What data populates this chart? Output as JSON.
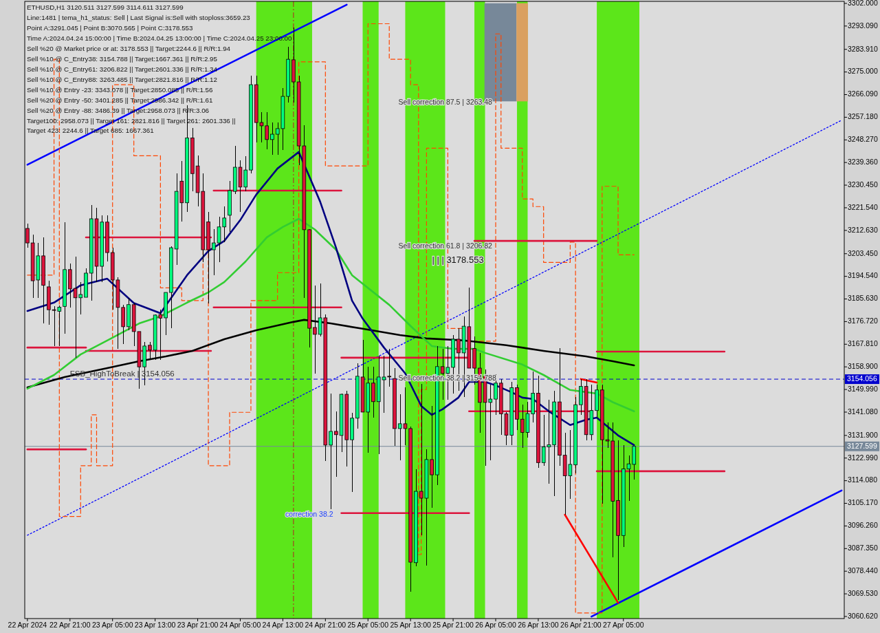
{
  "chart_data": {
    "type": "candlestick",
    "x": [
      "2024-04-22T13:00",
      "2024-04-22T14:00",
      "2024-04-22T15:00",
      "2024-04-22T16:00",
      "2024-04-22T17:00",
      "2024-04-22T18:00",
      "2024-04-22T19:00",
      "2024-04-22T20:00",
      "2024-04-22T21:00",
      "2024-04-22T22:00",
      "2024-04-22T23:00",
      "2024-04-23T00:00",
      "2024-04-23T01:00",
      "2024-04-23T02:00",
      "2024-04-23T03:00",
      "2024-04-23T04:00",
      "2024-04-23T05:00",
      "2024-04-23T06:00",
      "2024-04-23T07:00",
      "2024-04-23T08:00",
      "2024-04-23T09:00",
      "2024-04-23T10:00",
      "2024-04-23T11:00",
      "2024-04-23T12:00",
      "2024-04-23T13:00",
      "2024-04-23T14:00",
      "2024-04-23T15:00",
      "2024-04-23T16:00",
      "2024-04-23T17:00",
      "2024-04-23T18:00",
      "2024-04-23T19:00",
      "2024-04-23T20:00",
      "2024-04-23T21:00",
      "2024-04-23T22:00",
      "2024-04-23T23:00",
      "2024-04-24T00:00",
      "2024-04-24T01:00",
      "2024-04-24T02:00",
      "2024-04-24T03:00",
      "2024-04-24T04:00",
      "2024-04-24T05:00",
      "2024-04-24T06:00",
      "2024-04-24T07:00",
      "2024-04-24T08:00",
      "2024-04-24T09:00",
      "2024-04-24T10:00",
      "2024-04-24T11:00",
      "2024-04-24T12:00",
      "2024-04-24T13:00",
      "2024-04-24T14:00",
      "2024-04-24T15:00",
      "2024-04-24T16:00",
      "2024-04-24T17:00",
      "2024-04-24T18:00",
      "2024-04-24T19:00",
      "2024-04-24T20:00",
      "2024-04-24T21:00",
      "2024-04-24T22:00",
      "2024-04-24T23:00",
      "2024-04-25T00:00",
      "2024-04-25T01:00",
      "2024-04-25T02:00",
      "2024-04-25T03:00",
      "2024-04-25T04:00",
      "2024-04-25T05:00",
      "2024-04-25T06:00",
      "2024-04-25T07:00",
      "2024-04-25T08:00",
      "2024-04-25T09:00",
      "2024-04-25T10:00",
      "2024-04-25T11:00",
      "2024-04-25T12:00",
      "2024-04-25T13:00",
      "2024-04-25T14:00",
      "2024-04-25T15:00",
      "2024-04-25T16:00",
      "2024-04-25T17:00",
      "2024-04-25T18:00",
      "2024-04-25T19:00",
      "2024-04-25T20:00",
      "2024-04-25T21:00",
      "2024-04-25T22:00",
      "2024-04-25T23:00",
      "2024-04-26T00:00",
      "2024-04-26T01:00",
      "2024-04-26T02:00",
      "2024-04-26T03:00",
      "2024-04-26T04:00",
      "2024-04-26T05:00",
      "2024-04-26T06:00",
      "2024-04-26T07:00",
      "2024-04-26T08:00",
      "2024-04-26T09:00",
      "2024-04-26T10:00",
      "2024-04-26T11:00",
      "2024-04-26T12:00",
      "2024-04-26T13:00",
      "2024-04-26T14:00",
      "2024-04-26T15:00",
      "2024-04-26T16:00",
      "2024-04-26T17:00",
      "2024-04-26T18:00",
      "2024-04-26T19:00",
      "2024-04-26T20:00",
      "2024-04-26T21:00",
      "2024-04-26T22:00",
      "2024-04-26T23:00",
      "2024-04-27T00:00",
      "2024-04-27T01:00",
      "2024-04-27T02:00",
      "2024-04-27T03:00",
      "2024-04-27T04:00",
      "2024-04-27T05:00",
      "2024-04-27T06:00",
      "2024-04-27T07:00"
    ],
    "ohlc": [
      [
        3213.4,
        3215.3,
        3205.8,
        3207.7
      ],
      [
        3207.7,
        3210.9,
        3186.1,
        3192.8
      ],
      [
        3193.1,
        3207.7,
        3186.1,
        3202.6
      ],
      [
        3202.6,
        3209.9,
        3176.0,
        3191.0
      ],
      [
        3190.4,
        3192.8,
        3175.5,
        3181.4
      ],
      [
        3181.4,
        3182.8,
        3167.1,
        3181.4
      ],
      [
        3180.8,
        3183.0,
        3167.1,
        3182.4
      ],
      [
        3182.7,
        3215.9,
        3172.0,
        3197.2
      ],
      [
        3197.2,
        3199.6,
        3182.3,
        3189.6
      ],
      [
        3189.8,
        3202.3,
        3162.5,
        3186.1
      ],
      [
        3186.1,
        3192.3,
        3179.5,
        3187.4
      ],
      [
        3186.3,
        3197.7,
        3186.3,
        3195.8
      ],
      [
        3195.8,
        3222.6,
        3185.0,
        3217.2
      ],
      [
        3217.2,
        3221.5,
        3192.3,
        3198.5
      ],
      [
        3198.5,
        3218.6,
        3192.3,
        3215.9
      ],
      [
        3215.9,
        3218.6,
        3200.4,
        3203.9
      ],
      [
        3203.9,
        3205.8,
        3181.4,
        3193.1
      ],
      [
        3193.1,
        3194.2,
        3166.0,
        3182.3
      ],
      [
        3182.3,
        3183.4,
        3167.9,
        3174.7
      ],
      [
        3174.7,
        3186.1,
        3173.3,
        3183.4
      ],
      [
        3183.4,
        3184.2,
        3167.1,
        3172.8
      ],
      [
        3172.8,
        3172.8,
        3150.3,
        3158.9
      ],
      [
        3158.9,
        3168.7,
        3151.7,
        3167.1
      ],
      [
        3167.4,
        3168.7,
        3161.7,
        3165.5
      ],
      [
        3165.5,
        3179.5,
        3161.7,
        3179.3
      ],
      [
        3179.5,
        3181.4,
        3161.7,
        3178.1
      ],
      [
        3178.2,
        3188.2,
        3171.4,
        3188.2
      ],
      [
        3188.2,
        3206.4,
        3174.1,
        3205.8
      ],
      [
        3205.3,
        3235.0,
        3199.0,
        3228.0
      ],
      [
        3232.0,
        3240.0,
        3216.0,
        3223.5
      ],
      [
        3223.5,
        3262.0,
        3220.0,
        3249.0
      ],
      [
        3249.0,
        3253.0,
        3228.0,
        3235.0
      ],
      [
        3238.0,
        3242.0,
        3222.0,
        3227.5
      ],
      [
        3228.0,
        3235.0,
        3200.0,
        3205.0
      ],
      [
        3216.0,
        3220.0,
        3184.0,
        3205.0
      ],
      [
        3205.0,
        3213.0,
        3195.0,
        3207.7
      ],
      [
        3207.7,
        3218.0,
        3200.0,
        3214.0
      ],
      [
        3214.0,
        3222.0,
        3208.0,
        3217.5
      ],
      [
        3218.6,
        3232.0,
        3212.0,
        3228.3
      ],
      [
        3228.0,
        3246.0,
        3227.0,
        3237.5
      ],
      [
        3237.5,
        3240.2,
        3220.0,
        3229.7
      ],
      [
        3229.7,
        3241.9,
        3228.0,
        3236.4
      ],
      [
        3236.4,
        3273.6,
        3235.0,
        3270.0
      ],
      [
        3270.0,
        3273.6,
        3247.3,
        3255.1
      ],
      [
        3255.1,
        3259.2,
        3247.3,
        3253.8
      ],
      [
        3253.8,
        3259.2,
        3244.6,
        3248.4
      ],
      [
        3248.4,
        3255.0,
        3242.4,
        3250.5
      ],
      [
        3250.5,
        3255.0,
        3242.4,
        3252.7
      ],
      [
        3252.7,
        3268.7,
        3244.3,
        3265.4
      ],
      [
        3265.4,
        3285.0,
        3263.0,
        3280.0
      ],
      [
        3279.8,
        3292.5,
        3263.0,
        3271.1
      ],
      [
        3271.1,
        3273.6,
        3238.3,
        3245.9
      ],
      [
        3245.9,
        3254.0,
        3186.0,
        3212.9
      ],
      [
        3212.9,
        3213.0,
        3166.5,
        3174.1
      ],
      [
        3174.4,
        3190.9,
        3156.3,
        3171.7
      ],
      [
        3171.7,
        3191.7,
        3171.0,
        3178.2
      ],
      [
        3178.2,
        3179.5,
        3121.9,
        3128.1
      ],
      [
        3128.1,
        3148.4,
        3102.9,
        3133.5
      ],
      [
        3133.5,
        3141.4,
        3115.6,
        3132.2
      ],
      [
        3131.9,
        3148.4,
        3125.4,
        3148.1
      ],
      [
        3148.1,
        3149.5,
        3119.7,
        3130.2
      ],
      [
        3130.2,
        3140.8,
        3109.7,
        3138.7
      ],
      [
        3138.7,
        3160.3,
        3134.6,
        3155.2
      ],
      [
        3154.9,
        3169.5,
        3141.0,
        3141.1
      ],
      [
        3141.1,
        3159.0,
        3125.1,
        3152.5
      ],
      [
        3152.5,
        3159.0,
        3138.9,
        3145.2
      ],
      [
        3145.2,
        3163.3,
        3124.6,
        3154.9
      ],
      [
        3153.8,
        3163.3,
        3140.8,
        3154.9
      ],
      [
        3155.2,
        3166.0,
        3151.0,
        3155.2
      ],
      [
        3154.3,
        3158.4,
        3127.8,
        3134.6
      ],
      [
        3134.6,
        3148.1,
        3122.1,
        3136.5
      ],
      [
        3136.5,
        3150.8,
        3128.1,
        3134.6
      ],
      [
        3134.6,
        3135.4,
        3070.4,
        3082.0
      ],
      [
        3081.8,
        3118.6,
        3080.4,
        3109.9
      ],
      [
        3109.9,
        3152.2,
        3092.6,
        3107.2
      ],
      [
        3107.2,
        3126.5,
        3080.7,
        3122.4
      ],
      [
        3122.4,
        3143.5,
        3103.4,
        3116.4
      ],
      [
        3116.4,
        3167.1,
        3112.4,
        3159.0
      ],
      [
        3159.0,
        3166.0,
        3146.0,
        3156.3
      ],
      [
        3156.3,
        3167.1,
        3146.0,
        3158.7
      ],
      [
        3158.7,
        3171.4,
        3148.4,
        3169.8
      ],
      [
        3169.8,
        3174.1,
        3149.5,
        3164.4
      ],
      [
        3164.4,
        3178.7,
        3147.0,
        3174.9
      ],
      [
        3174.7,
        3190.1,
        3158.4,
        3158.4
      ],
      [
        3166.1,
        3171.0,
        3152.0,
        3158.4
      ],
      [
        3158.4,
        3164.4,
        3133.0,
        3144.9
      ],
      [
        3155.3,
        3158.0,
        3120.0,
        3144.9
      ],
      [
        3144.9,
        3152.0,
        3122.0,
        3146.2
      ],
      [
        3146.2,
        3156.0,
        3140.0,
        3152.5
      ],
      [
        3152.5,
        3154.0,
        3132.0,
        3140.4
      ],
      [
        3140.4,
        3141.0,
        3128.0,
        3132.0
      ],
      [
        3132.0,
        3153.0,
        3128.0,
        3150.7
      ],
      [
        3150.7,
        3152.0,
        3134.0,
        3138.3
      ],
      [
        3138.3,
        3144.0,
        3127.0,
        3133.1
      ],
      [
        3133.1,
        3145.0,
        3131.0,
        3140.5
      ],
      [
        3140.4,
        3157.0,
        3137.0,
        3148.5
      ],
      [
        3148.5,
        3155.5,
        3119.0,
        3121.2
      ],
      [
        3121.2,
        3140.0,
        3120.0,
        3127.4
      ],
      [
        3127.4,
        3146.0,
        3113.0,
        3128.2
      ],
      [
        3128.2,
        3149.5,
        3108.0,
        3145.1
      ],
      [
        3145.1,
        3166.4,
        3120.0,
        3124.1
      ],
      [
        3124.1,
        3133.0,
        3100.7,
        3116.0
      ],
      [
        3116.0,
        3134.0,
        3107.0,
        3120.5
      ],
      [
        3120.3,
        3147.0,
        3117.0,
        3144.0
      ],
      [
        3144.0,
        3154.0,
        3140.0,
        3151.2
      ],
      [
        3151.2,
        3154.0,
        3130.0,
        3132.2
      ],
      [
        3132.2,
        3152.0,
        3130.0,
        3141.7
      ],
      [
        3141.7,
        3152.0,
        3139.0,
        3149.8
      ],
      [
        3149.8,
        3152.0,
        3105.0,
        3130.2
      ],
      [
        3130.2,
        3137.0,
        3127.0,
        3129.7
      ],
      [
        3129.7,
        3137.0,
        3084.0,
        3106.0
      ],
      [
        3106.3,
        3130.0,
        3067.0,
        3092.5
      ],
      [
        3092.5,
        3128.0,
        3088.0,
        3118.7
      ],
      [
        3118.7,
        3124.0,
        3106.0,
        3120.7
      ],
      [
        3120.511,
        3127.599,
        3114.611,
        3127.599
      ]
    ],
    "colors": [
      "#dc143c",
      "#dc143c",
      "#00ff7f",
      "#dc143c",
      "#dc143c",
      "#dc143c",
      "#00ff7f",
      "#00ff7f",
      "#dc143c",
      "#dc143c",
      "#00ff7f",
      "#00ff7f",
      "#00ff7f",
      "#dc143c",
      "#00ff7f",
      "#dc143c",
      "#dc143c",
      "#dc143c",
      "#dc143c",
      "#00ff7f",
      "#dc143c",
      "#dc143c",
      "#00ff7f",
      "#dc143c",
      "#00ff7f",
      "#dc143c",
      "#00ff7f",
      "#00ff7f",
      "#00ff7f",
      "#dc143c",
      "#00ff7f",
      "#dc143c",
      "#dc143c",
      "#dc143c",
      "#dc143c",
      "#00ff7f",
      "#00ff7f",
      "#00ff7f",
      "#00ff7f",
      "#00ff7f",
      "#dc143c",
      "#00ff7f",
      "#00ff7f",
      "#dc143c",
      "#dc143c",
      "#dc143c",
      "#00ff7f",
      "#00ff7f",
      "#00ff7f",
      "#00ff7f",
      "#dc143c",
      "#dc143c",
      "#dc143c",
      "#dc143c",
      "#dc143c",
      "#00ff7f",
      "#dc143c",
      "#00ff7f",
      "#dc143c",
      "#00ff7f",
      "#dc143c",
      "#00ff7f",
      "#00ff7f",
      "#dc143c",
      "#00ff7f",
      "#dc143c",
      "#00ff7f",
      "#00ff7f",
      "#dc143c",
      "#dc143c",
      "#00ff7f",
      "#dc143c",
      "#dc143c",
      "#00ff7f",
      "#dc143c",
      "#00ff7f",
      "#dc143c",
      "#00ff7f",
      "#dc143c",
      "#00ff7f",
      "#00ff7f",
      "#dc143c",
      "#00ff7f",
      "#dc143c",
      "#dc143c",
      "#dc143c",
      "#dc143c",
      "#00ff7f",
      "#00ff7f",
      "#dc143c",
      "#dc143c",
      "#00ff7f",
      "#dc143c",
      "#dc143c",
      "#00ff7f",
      "#00ff7f",
      "#dc143c",
      "#00ff7f",
      "#00ff7f",
      "#00ff7f",
      "#dc143c",
      "#dc143c",
      "#00ff7f",
      "#00ff7f",
      "#00ff7f",
      "#dc143c",
      "#00ff7f",
      "#00ff7f",
      "#dc143c",
      "#dc143c",
      "#dc143c",
      "#dc143c",
      "#00ff7f",
      "#00ff7f",
      "#00ff7f"
    ],
    "xlim": [
      "2024-04-22T12:30",
      "2024-04-28T22:30"
    ],
    "xticks": [
      {
        "value": "2024-04-22T13:00",
        "label": "22 Apr 2024"
      },
      {
        "value": "2024-04-22T21:00",
        "label": "22 Apr 21:00"
      },
      {
        "value": "2024-04-23T05:00",
        "label": "23 Apr 05:00"
      },
      {
        "value": "2024-04-23T13:00",
        "label": "23 Apr 13:00"
      },
      {
        "value": "2024-04-23T21:00",
        "label": "23 Apr 21:00"
      },
      {
        "value": "2024-04-24T05:00",
        "label": "24 Apr 05:00"
      },
      {
        "value": "2024-04-24T13:00",
        "label": "24 Apr 13:00"
      },
      {
        "value": "2024-04-24T21:00",
        "label": "24 Apr 21:00"
      },
      {
        "value": "2024-04-25T05:00",
        "label": "25 Apr 05:00"
      },
      {
        "value": "2024-04-25T13:00",
        "label": "25 Apr 13:00"
      },
      {
        "value": "2024-04-25T21:00",
        "label": "25 Apr 21:00"
      },
      {
        "value": "2024-04-26T05:00",
        "label": "26 Apr 05:00"
      },
      {
        "value": "2024-04-26T13:00",
        "label": "26 Apr 13:00"
      },
      {
        "value": "2024-04-26T21:00",
        "label": "26 Apr 21:00"
      },
      {
        "value": "2024-04-27T05:00",
        "label": "27 Apr 05:00"
      }
    ],
    "ylim": [
      3059.8,
      3302.8
    ],
    "yticks": [
      {
        "value": 3302,
        "label": "3302.000"
      },
      {
        "value": 3293.09,
        "label": "3293.090"
      },
      {
        "value": 3283.91,
        "label": "3283.910"
      },
      {
        "value": 3275,
        "label": "3275.000"
      },
      {
        "value": 3266.09,
        "label": "3266.090"
      },
      {
        "value": 3257.18,
        "label": "3257.180"
      },
      {
        "value": 3248.27,
        "label": "3248.270"
      },
      {
        "value": 3239.36,
        "label": "3239.360"
      },
      {
        "value": 3230.45,
        "label": "3230.450"
      },
      {
        "value": 3221.54,
        "label": "3221.540"
      },
      {
        "value": 3212.63,
        "label": "3212.630"
      },
      {
        "value": 3203.45,
        "label": "3203.450"
      },
      {
        "value": 3194.54,
        "label": "3194.540"
      },
      {
        "value": 3185.63,
        "label": "3185.630"
      },
      {
        "value": 3176.72,
        "label": "3176.720"
      },
      {
        "value": 3167.81,
        "label": "3167.810"
      },
      {
        "value": 3158.9,
        "label": "3158.900"
      },
      {
        "value": 3149.99,
        "label": "3149.990"
      },
      {
        "value": 3141.08,
        "label": "3141.080"
      },
      {
        "value": 3131.9,
        "label": "3131.900"
      },
      {
        "value": 3122.99,
        "label": "3122.990"
      },
      {
        "value": 3114.08,
        "label": "3114.080"
      },
      {
        "value": 3105.17,
        "label": "3105.170"
      },
      {
        "value": 3096.26,
        "label": "3096.260"
      },
      {
        "value": 3087.35,
        "label": "3087.350"
      },
      {
        "value": 3078.44,
        "label": "3078.440"
      },
      {
        "value": 3069.53,
        "label": "3069.530"
      },
      {
        "value": 3060.62,
        "label": "3060.620"
      }
    ],
    "bands": [
      {
        "axis": "x",
        "from": "2024-04-24T08:00",
        "to": "2024-04-24T18:30",
        "color": "#5ce61a"
      },
      {
        "axis": "x",
        "from": "2024-04-25T04:00",
        "to": "2024-04-25T07:00",
        "color": "#5ce61a"
      },
      {
        "axis": "x",
        "from": "2024-04-25T12:00",
        "to": "2024-04-25T19:30",
        "color": "#5ce61a"
      },
      {
        "axis": "x",
        "from": "2024-04-26T01:00",
        "to": "2024-04-26T03:00",
        "color": "#5ce61a"
      },
      {
        "axis": "x",
        "from": "2024-04-26T09:00",
        "to": "2024-04-26T11:00",
        "color": "#5ce61a"
      },
      {
        "axis": "x",
        "from": "2024-04-27T00:00",
        "to": "2024-04-27T08:00",
        "color": "#5ce61a"
      }
    ],
    "ref_lines": [
      {
        "axis": "y",
        "value": 3154.056,
        "label": "3154.056",
        "color": "#0000cd",
        "line_style": "dashed"
      },
      {
        "axis": "y",
        "value": 3127.599,
        "label": "3127.599",
        "color": "#778899",
        "line_style": "solid"
      },
      {
        "axis": "x",
        "value": "2024-04-24T15:00",
        "color": "#b22222",
        "line_style": "dashed"
      }
    ],
    "series": [
      {
        "type": "line",
        "color": "#0000ff",
        "line_style": "solid",
        "x": [
          "2024-04-22T13:00",
          "2024-04-25T01:00"
        ],
        "values": [
          3238.5,
          3301.5
        ]
      },
      {
        "type": "line",
        "color": "#0000ff",
        "line_style": "solid",
        "x": [
          "2024-04-26T23:00",
          "2024-04-28T22:00"
        ],
        "values": [
          3060.6,
          3110.2
        ]
      },
      {
        "type": "line",
        "color": "#0000ff",
        "line_style": "dotted",
        "x": [
          "2024-04-22T13:00",
          "2024-04-28T22:00"
        ],
        "values": [
          3092.6,
          3256.0
        ]
      },
      {
        "type": "step",
        "color": "#ff4500",
        "line_style": "dashed",
        "x": [
          "2024-04-22T13:00",
          "2024-04-22T17:00",
          "2024-04-22T18:00",
          "2024-04-22T19:00",
          "2024-04-22T23:00",
          "2024-04-23T01:00",
          "2024-04-23T02:00",
          "2024-04-23T05:00",
          "2024-04-23T09:00",
          "2024-04-23T13:00",
          "2024-04-23T14:00",
          "2024-04-23T18:00",
          "2024-04-23T22:00",
          "2024-04-23T23:00",
          "2024-04-24T03:00",
          "2024-04-24T07:00",
          "2024-04-24T12:00",
          "2024-04-24T16:00",
          "2024-04-24T19:00",
          "2024-04-24T21:00",
          "2024-04-25T04:00",
          "2024-04-25T05:00",
          "2024-04-25T09:00",
          "2024-04-25T13:00",
          "2024-04-25T14:30",
          "2024-04-25T15:00",
          "2024-04-25T16:00",
          "2024-04-25T20:00",
          "2024-04-25T23:00",
          "2024-04-26T05:00",
          "2024-04-26T06:00",
          "2024-04-26T10:00",
          "2024-04-26T12:00",
          "2024-04-26T14:00",
          "2024-04-26T19:00",
          "2024-04-26T20:00",
          "2024-04-27T00:00",
          "2024-04-27T01:00",
          "2024-04-27T03:00",
          "2024-04-27T04:00",
          "2024-04-27T07:00"
        ],
        "values": [
          3195,
          3195,
          3280,
          3100,
          3120,
          3140,
          3120,
          3270,
          3242,
          3242,
          3190,
          3185,
          3205,
          3120,
          3141,
          3185,
          3196,
          3279,
          3279,
          3238,
          3238,
          3294,
          3280,
          3270,
          3085,
          3150,
          3245,
          3174,
          3169,
          3290,
          3245,
          3225,
          3222,
          3200,
          3208,
          3062,
          3062,
          3230,
          3230,
          3203,
          3203
        ]
      },
      {
        "type": "line",
        "color": "#dc143c",
        "line_style": "solid",
        "x": [
          "2024-04-24T00:00",
          "2024-04-25T00:00"
        ],
        "values": [
          3228.3,
          3228.3
        ]
      },
      {
        "type": "line",
        "color": "#dc143c",
        "line_style": "solid",
        "x": [
          "2024-04-23T00:00",
          "2024-04-23T23:30"
        ],
        "values": [
          3209.9,
          3209.9
        ]
      },
      {
        "type": "line",
        "color": "#dc143c",
        "line_style": "solid",
        "x": [
          "2024-04-24T00:00",
          "2024-04-25T00:00"
        ],
        "values": [
          3182.3,
          3182.3
        ]
      },
      {
        "type": "line",
        "color": "#dc143c",
        "line_style": "solid",
        "x": [
          "2024-04-22T13:00",
          "2024-04-23T00:00"
        ],
        "values": [
          3166.5,
          3166.5
        ]
      },
      {
        "type": "line",
        "color": "#dc143c",
        "line_style": "solid",
        "x": [
          "2024-04-23T00:00",
          "2024-04-23T23:30"
        ],
        "values": [
          3165.2,
          3165.2
        ]
      },
      {
        "type": "line",
        "color": "#dc143c",
        "line_style": "solid",
        "x": [
          "2024-04-25T00:00",
          "2024-04-26T00:00"
        ],
        "values": [
          3162.5,
          3162.5
        ]
      },
      {
        "type": "line",
        "color": "#dc143c",
        "line_style": "solid",
        "x": [
          "2024-04-26T00:00",
          "2024-04-26T23:00"
        ],
        "values": [
          3141.4,
          3141.4
        ]
      },
      {
        "type": "line",
        "color": "#dc143c",
        "line_style": "solid",
        "x": [
          "2024-04-22T13:00",
          "2024-04-23T00:00"
        ],
        "values": [
          3126.4,
          3126.4
        ]
      },
      {
        "type": "line",
        "color": "#dc143c",
        "line_style": "solid",
        "x": [
          "2024-04-27T00:00",
          "2024-04-28T00:00"
        ],
        "values": [
          3117.8,
          3117.8
        ]
      },
      {
        "type": "line",
        "color": "#dc143c",
        "line_style": "solid",
        "x": [
          "2024-04-25T00:00",
          "2024-04-26T00:00"
        ],
        "values": [
          3101.3,
          3101.3
        ]
      },
      {
        "type": "line",
        "color": "#dc143c",
        "line_style": "solid",
        "x": [
          "2024-04-26T01:00",
          "2024-04-27T00:00"
        ],
        "values": [
          3208.5,
          3208.5
        ]
      },
      {
        "type": "line",
        "color": "#dc143c",
        "line_style": "solid",
        "x": [
          "2024-04-27T00:00",
          "2024-04-28T00:00"
        ],
        "values": [
          3164.9,
          3164.9
        ]
      },
      {
        "type": "line",
        "color": "#ff0000",
        "line_style": "solid",
        "x": [
          "2024-04-26T18:00",
          "2024-04-27T04:00"
        ],
        "values": [
          3100.7,
          3066.0
        ]
      },
      {
        "type": "line",
        "color": "#ff0000",
        "line_style": "solid",
        "x": [
          "2024-04-26T21:00",
          "2024-04-27T00:00"
        ],
        "values": [
          3154.1,
          3152.7
        ]
      },
      {
        "type": "line",
        "color": "#000000",
        "line_style": "solid",
        "x": [
          "2024-04-22T13:00",
          "2024-04-22T20:00",
          "2024-04-23T04:00",
          "2024-04-23T10:00",
          "2024-04-23T15:00",
          "2024-04-23T20:00",
          "2024-04-24T02:00",
          "2024-04-24T08:00",
          "2024-04-24T15:00",
          "2024-04-24T17:00",
          "2024-04-24T22:00",
          "2024-04-25T04:00",
          "2024-04-25T11:00",
          "2024-04-25T16:00",
          "2024-04-25T23:00",
          "2024-04-26T07:00",
          "2024-04-26T14:00",
          "2024-04-26T22:00",
          "2024-04-27T03:00",
          "2024-04-27T07:00"
        ],
        "values": [
          3150.8,
          3154.9,
          3158.4,
          3161.1,
          3163,
          3165.2,
          3169.8,
          3173.3,
          3176.6,
          3177.4,
          3176,
          3173.9,
          3171.4,
          3170.1,
          3169.3,
          3167.4,
          3165.2,
          3163,
          3161.1,
          3159.5
        ]
      },
      {
        "type": "line",
        "color": "#32cd32",
        "line_style": "solid",
        "x": [
          "2024-04-22T13:00",
          "2024-04-22T18:00",
          "2024-04-22T23:00",
          "2024-04-23T04:00",
          "2024-04-23T10:00",
          "2024-04-23T14:00",
          "2024-04-23T19:00",
          "2024-04-23T23:00",
          "2024-04-24T02:00",
          "2024-04-24T06:00",
          "2024-04-24T10:00",
          "2024-04-24T13:00",
          "2024-04-24T16:00",
          "2024-04-24T19:00",
          "2024-04-24T23:00",
          "2024-04-25T02:00",
          "2024-04-25T09:00",
          "2024-04-25T13:00",
          "2024-04-25T17:00",
          "2024-04-25T21:00",
          "2024-04-26T01:00",
          "2024-04-26T03:00",
          "2024-04-26T10:00",
          "2024-04-26T14:00",
          "2024-04-26T19:00",
          "2024-04-27T00:00",
          "2024-04-27T03:00",
          "2024-04-27T07:00"
        ],
        "values": [
          3150.3,
          3155.7,
          3163.8,
          3169.3,
          3176,
          3178.8,
          3184.2,
          3188.2,
          3192.3,
          3200.4,
          3209.9,
          3214,
          3217.2,
          3213,
          3205,
          3195,
          3183.3,
          3175,
          3167.1,
          3166,
          3166,
          3164.4,
          3159.8,
          3155.7,
          3149.8,
          3148.4,
          3145,
          3141.4
        ]
      },
      {
        "type": "line",
        "color": "#000080",
        "line_style": "solid",
        "x": [
          "2024-04-22T13:00",
          "2024-04-22T18:00",
          "2024-04-22T23:00",
          "2024-04-23T04:00",
          "2024-04-23T09:00",
          "2024-04-23T14:00",
          "2024-04-23T19:00",
          "2024-04-23T23:00",
          "2024-04-24T02:00",
          "2024-04-24T05:00",
          "2024-04-24T08:00",
          "2024-04-24T12:00",
          "2024-04-24T16:00",
          "2024-04-24T20:00",
          "2024-04-24T23:00",
          "2024-04-25T02:00",
          "2024-04-25T04:00",
          "2024-04-25T08:00",
          "2024-04-25T12:00",
          "2024-04-25T15:00",
          "2024-04-25T17:00",
          "2024-04-25T19:00",
          "2024-04-25T22:00",
          "2024-04-26T00:00",
          "2024-04-26T03:00",
          "2024-04-26T05:00",
          "2024-04-26T08:00",
          "2024-04-26T10:00",
          "2024-04-26T12:00",
          "2024-04-26T15:00",
          "2024-04-26T19:00",
          "2024-04-26T22:00",
          "2024-04-27T00:00",
          "2024-04-27T04:00",
          "2024-04-27T07:00"
        ],
        "values": [
          3180.9,
          3184.2,
          3191,
          3193.6,
          3184,
          3180,
          3195,
          3204.5,
          3208.5,
          3216.7,
          3226.7,
          3237,
          3243.5,
          3224,
          3205.8,
          3185,
          3177.9,
          3166.5,
          3156.3,
          3143.5,
          3140,
          3142.2,
          3146.8,
          3153,
          3153,
          3151.6,
          3148.9,
          3146.8,
          3146.2,
          3141.4,
          3136,
          3138.1,
          3138.9,
          3131.9,
          3128.1
        ]
      }
    ],
    "annotations": [
      "ETHUSD,H1  3120.511 3127.599 3114.611 3127.599",
      "Line:1481 | tema_h1_status: Sell | Last Signal is:Sell with stoploss:3659.23",
      "Point A:3291.045 | Point B:3070.565 | Point C:3178.553",
      "Time A:2024.04.24 15:00:00 | Time B:2024.04.25 13:00:00 | Time C:2024.04.25 23:00:00",
      "Sell %20 @ Market price or at: 3178.553 || Target:2244.6 || R/R:1.94",
      "Sell %10 @ C_Entry38: 3154.788 || Target:1667.361 || R/R:2.95",
      "Sell %10 @ C_Entry61: 3206.822 || Target:2601.336 || R/R:1.34",
      "Sell %10 @ C_Entry88: 3263.485 || Target:2821.816 || R/R:1.12",
      "Sell %10 @ Entry -23: 3343.078 || Target:2850.085 || R/R:1.56",
      "Sell %20 @ Entry -50: 3401.285 || Target:2986.342 || R/R:1.61",
      "Sell %20 @ Entry -88: 3486.39 || Target:2958.073 || R/R:3.06",
      "Target100: 2958.073 || Target 161: 2821.816 || Target 261: 2601.336 || Target 423: 2244.6 || Target 685: 1667.361",
      "Sell correction 87.5 | 3263.48",
      "Sell correction 61.8 | 3206.82",
      "| | | 3178.553",
      "Sell correction 38.2 | 3154.788",
      {
        "text": "FSB_HighToBreak | 3154.056",
        "x": "2024-04-22T21:00",
        "y": 3155.2
      },
      "correction 38.2"
    ]
  }
}
